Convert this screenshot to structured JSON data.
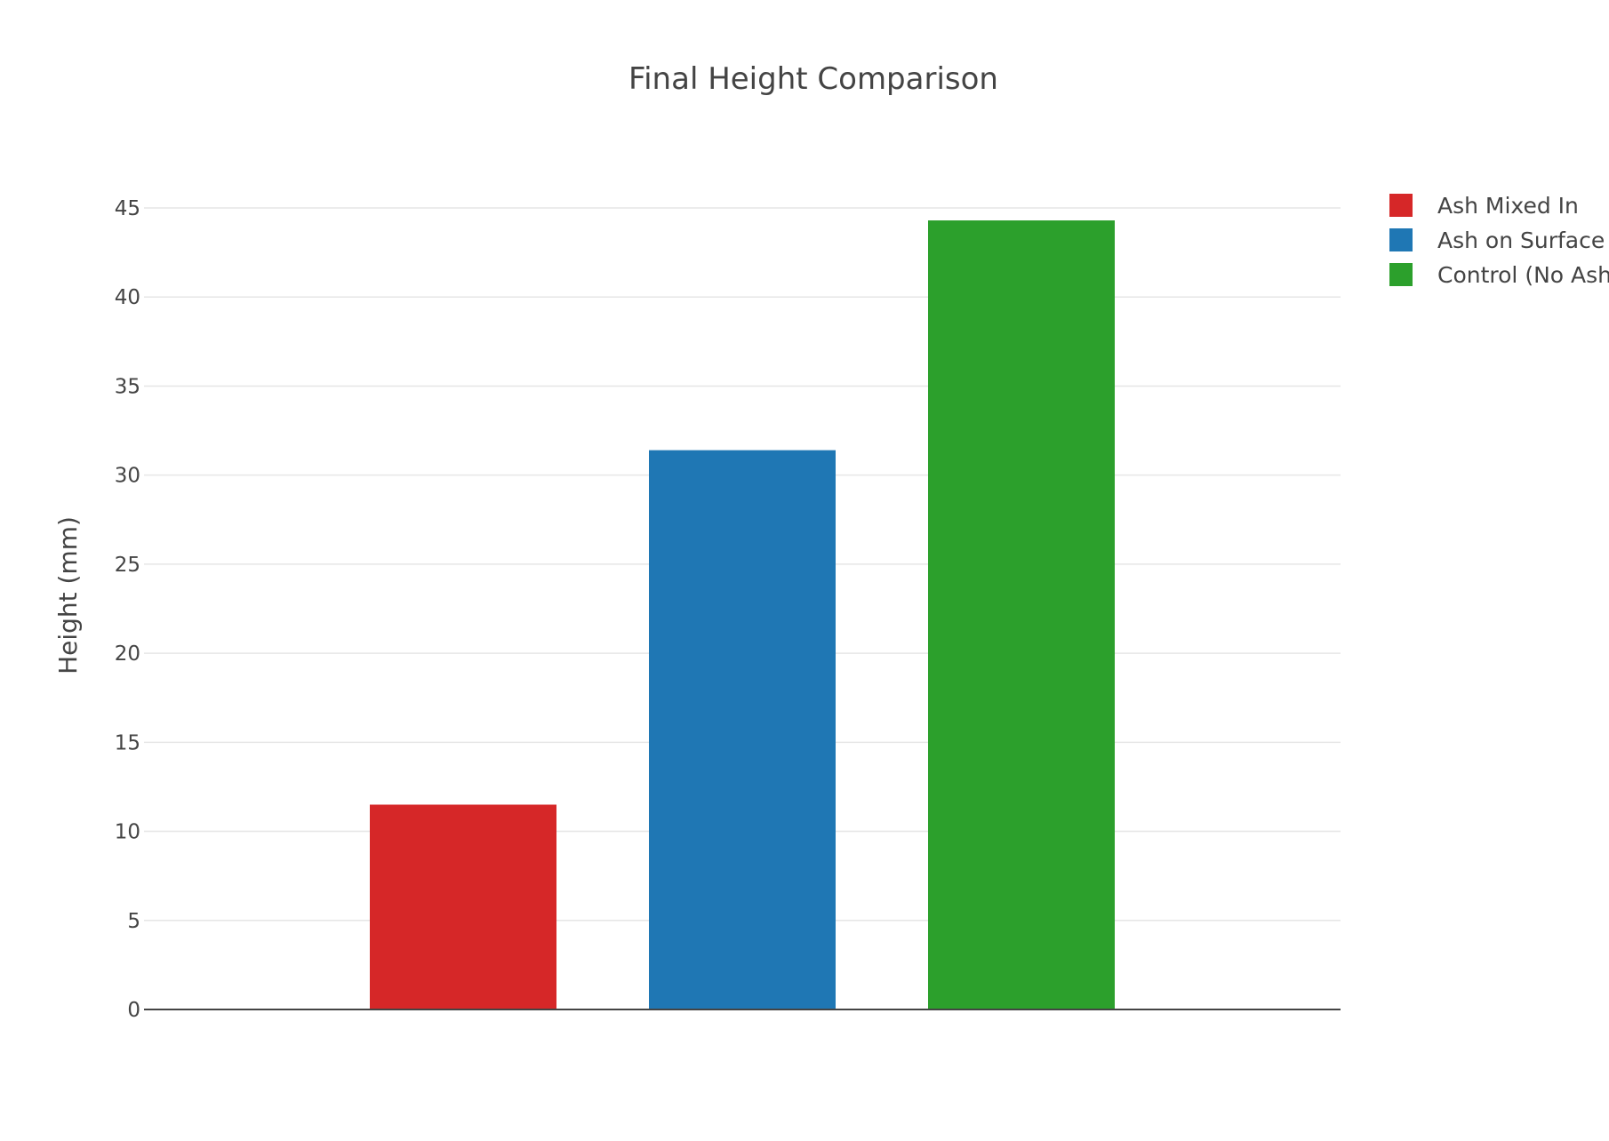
{
  "chart_data": {
    "type": "bar",
    "title": "Final Height Comparison",
    "ylabel": "Height (mm)",
    "xlabel": "",
    "ylim": [
      0,
      45
    ],
    "yticks": [
      0,
      5,
      10,
      15,
      20,
      25,
      30,
      35,
      40,
      45
    ],
    "grid": true,
    "legend_position": "top-right",
    "series": [
      {
        "name": "Ash Mixed In",
        "value": 11.5,
        "color": "#d62728"
      },
      {
        "name": "Ash on Surface",
        "value": 31.4,
        "color": "#1f77b4"
      },
      {
        "name": "Control (No Ash)",
        "value": 44.3,
        "color": "#2ca02c"
      }
    ]
  }
}
